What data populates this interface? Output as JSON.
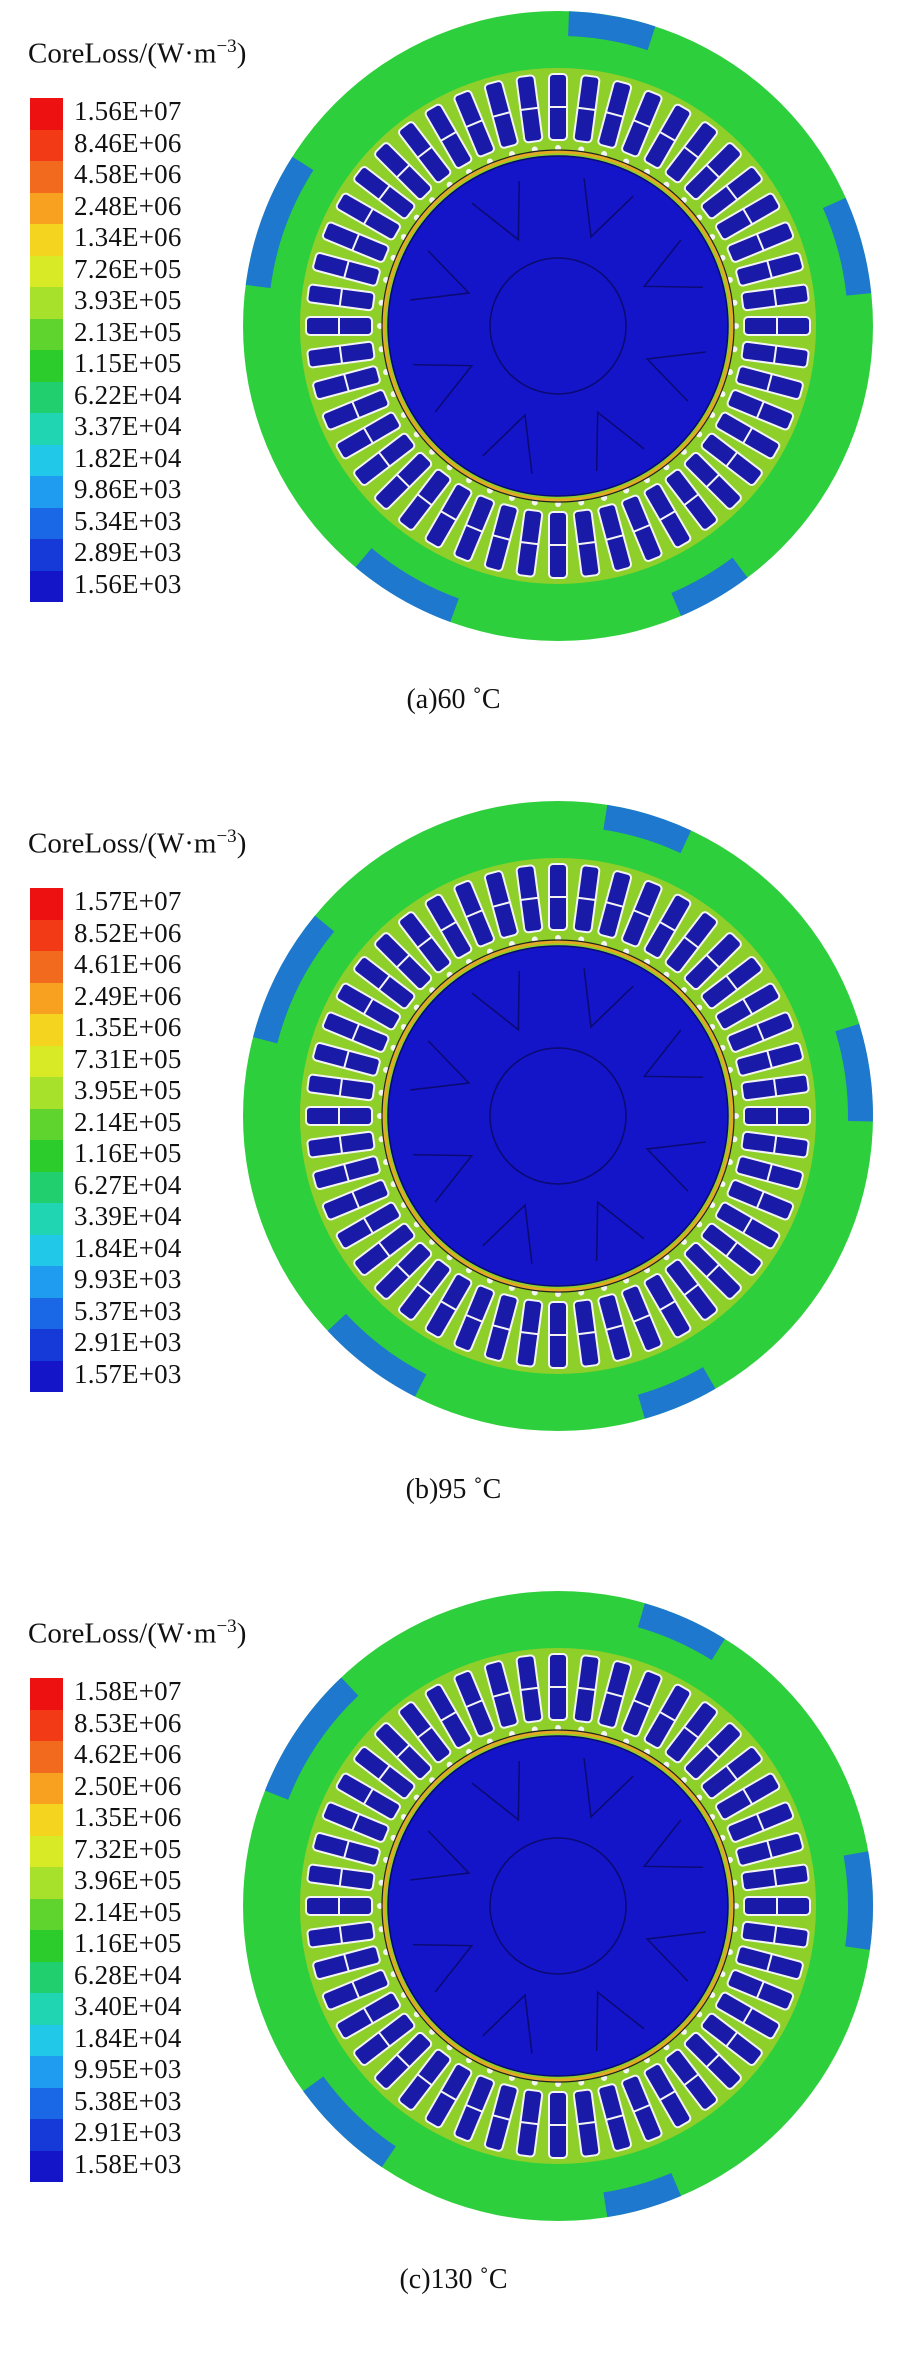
{
  "colors": {
    "scale": [
      "#ee1111",
      "#f23a16",
      "#f26a1e",
      "#f8a020",
      "#f4d41f",
      "#d7ea25",
      "#a7e12b",
      "#5fd42e",
      "#2bcc2c",
      "#22cf6e",
      "#20d6b2",
      "#22c8e8",
      "#1f9cf0",
      "#1b68e6",
      "#163ad8",
      "#1414c8"
    ],
    "yoke": "#2ecf3c",
    "rotor": "#1414c8",
    "rotor_outline": "#0a0a70",
    "teeth": "#8ecf2a",
    "slot": "#1a1aa8",
    "conductor": "#f4f4f4"
  },
  "panels": [
    {
      "legend_title": "CoreLoss/(W·m",
      "legend_unit_exp": "−3",
      "legend_unit_close": ")",
      "legend_values": [
        "1.56E+07",
        "8.46E+06",
        "4.58E+06",
        "2.48E+06",
        "1.34E+06",
        "7.26E+05",
        "3.93E+05",
        "2.13E+05",
        "1.15E+05",
        "6.22E+04",
        "3.37E+04",
        "1.82E+04",
        "9.86E+03",
        "5.34E+03",
        "2.89E+03",
        "1.56E+03"
      ],
      "caption": "(a)60 ˚C"
    },
    {
      "legend_title": "CoreLoss/(W·m",
      "legend_unit_exp": "−3",
      "legend_unit_close": ")",
      "legend_values": [
        "1.57E+07",
        "8.52E+06",
        "4.61E+06",
        "2.49E+06",
        "1.35E+06",
        "7.31E+05",
        "3.95E+05",
        "2.14E+05",
        "1.16E+05",
        "6.27E+04",
        "3.39E+04",
        "1.84E+04",
        "9.93E+03",
        "5.37E+03",
        "2.91E+03",
        "1.57E+03"
      ],
      "caption": "(b)95 ˚C"
    },
    {
      "legend_title": "CoreLoss/(W·m",
      "legend_unit_exp": "−3",
      "legend_unit_close": ")",
      "legend_values": [
        "1.58E+07",
        "8.53E+06",
        "4.62E+06",
        "2.50E+06",
        "1.35E+06",
        "7.32E+05",
        "3.96E+05",
        "2.14E+05",
        "1.16E+05",
        "6.28E+04",
        "3.40E+04",
        "1.84E+04",
        "9.95E+03",
        "5.38E+03",
        "2.91E+03",
        "1.58E+03"
      ],
      "caption": "(c)130 ˚C"
    }
  ]
}
